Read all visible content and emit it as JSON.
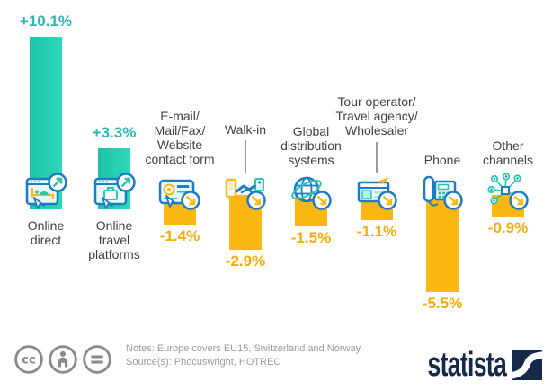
{
  "chart_data": {
    "type": "bar",
    "title": "",
    "xlabel": "",
    "ylabel": "",
    "unit": "%",
    "grid": false,
    "legend": false,
    "categories": [
      "Online\ndirect",
      "Online\ntravel\nplatforms",
      "E-mail/\nMail/Fax/\nWebsite\ncontact form",
      "Walk-in",
      "Global\ndistribution\nsystems",
      "Tour operator/\nTravel agency/\nWholesaler",
      "Phone",
      "Other\nchannels"
    ],
    "values": [
      10.1,
      3.3,
      -1.4,
      -2.9,
      -1.5,
      -1.1,
      -5.5,
      -0.9
    ],
    "value_labels": [
      "+10.1%",
      "+3.3%",
      "-1.4%",
      "-2.9%",
      "-1.5%",
      "-1.1%",
      "-5.5%",
      "-0.9%"
    ],
    "icons": [
      "online-direct-browser-icon",
      "online-travel-platform-browser-icon",
      "email-contact-icon",
      "walk-in-handshake-icon",
      "global-distribution-globe-icon",
      "tour-operator-storefront-icon",
      "phone-icon",
      "other-channels-network-icon"
    ],
    "colors": {
      "positive_bar": "#1fc2a7",
      "positive_bar_light": "#2fd8ba",
      "negative_bar": "#fdb713",
      "positive_label": "#2cb7b7",
      "negative_label": "#f8ad05",
      "category_label": "#414141",
      "icon_blue": "#1c7cc5",
      "icon_teal": "#2cc5b0",
      "icon_yellow": "#fdb913"
    }
  },
  "footer": {
    "notes": "Notes: Europe covers EU15, Switzerland and Norway.",
    "source": "Source(s): Phocuswright, HOTREC",
    "license_icons": [
      "cc-icon",
      "attribution-icon",
      "no-derivatives-icon"
    ],
    "brand": "statista"
  }
}
